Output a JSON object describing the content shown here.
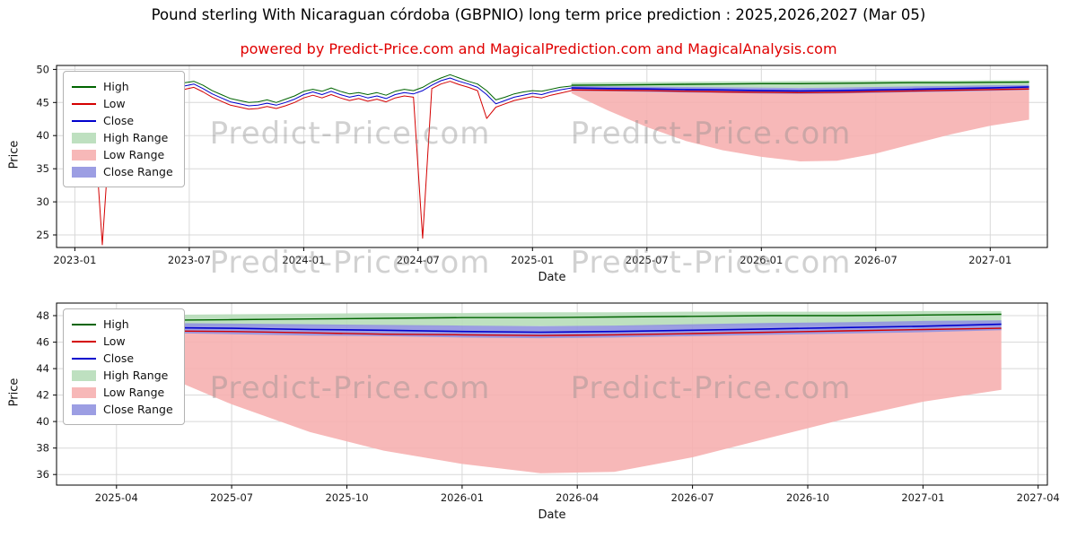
{
  "watermark": {
    "text": "Predict-Price.com"
  },
  "chart_data": [
    {
      "type": "line",
      "title": "Pound sterling With Nicaraguan córdoba (GBPNIO) long term price prediction : 2025,2026,2027 (Mar 05)",
      "subtitle": "powered by Predict-Price.com and MagicalPrediction.com and MagicalAnalysis.com",
      "subtitle_color": "#e00000",
      "xlabel": "Date",
      "ylabel": "Price",
      "xlim": [
        2022.92,
        2027.25
      ],
      "ylim": [
        23.1,
        50.6
      ],
      "grid": true,
      "legend_position": "upper-left",
      "xticks": [
        {
          "v": 2023.0,
          "label": "2023-01"
        },
        {
          "v": 2023.5,
          "label": "2023-07"
        },
        {
          "v": 2024.0,
          "label": "2024-01"
        },
        {
          "v": 2024.5,
          "label": "2024-07"
        },
        {
          "v": 2025.0,
          "label": "2025-01"
        },
        {
          "v": 2025.5,
          "label": "2025-07"
        },
        {
          "v": 2026.0,
          "label": "2026-01"
        },
        {
          "v": 2026.5,
          "label": "2026-07"
        },
        {
          "v": 2027.0,
          "label": "2027-01"
        }
      ],
      "yticks": [
        25,
        30,
        35,
        40,
        45,
        50
      ],
      "series_colors": {
        "high": "#006400",
        "low": "#d40000",
        "close": "#0000cd",
        "high_range": "#b7ddb9",
        "low_range": "#f6b0b0",
        "close_range": "#9193e0"
      },
      "legend": [
        {
          "label": "High",
          "key": "high",
          "type": "line"
        },
        {
          "label": "Low",
          "key": "low",
          "type": "line"
        },
        {
          "label": "Close",
          "key": "close",
          "type": "line"
        },
        {
          "label": "High Range",
          "key": "high_range",
          "type": "patch"
        },
        {
          "label": "Low Range",
          "key": "low_range",
          "type": "patch"
        },
        {
          "label": "Close Range",
          "key": "close_range",
          "type": "patch"
        }
      ],
      "history": {
        "t": [
          2023.0,
          2023.04,
          2023.08,
          2023.12,
          2023.16,
          2023.2,
          2023.24,
          2023.28,
          2023.32,
          2023.36,
          2023.4,
          2023.44,
          2023.48,
          2023.52,
          2023.56,
          2023.6,
          2023.64,
          2023.68,
          2023.72,
          2023.76,
          2023.8,
          2023.84,
          2023.88,
          2023.92,
          2023.96,
          2024.0,
          2024.04,
          2024.08,
          2024.12,
          2024.16,
          2024.2,
          2024.24,
          2024.28,
          2024.32,
          2024.36,
          2024.4,
          2024.44,
          2024.48,
          2024.52,
          2024.56,
          2024.6,
          2024.64,
          2024.68,
          2024.72,
          2024.76,
          2024.8,
          2024.84,
          2024.88,
          2024.92,
          2024.96,
          2025.0,
          2025.04,
          2025.08,
          2025.12,
          2025.17
        ],
        "high": [
          44.9,
          44.8,
          45.2,
          45.0,
          45.4,
          45.7,
          46.1,
          45.6,
          46.2,
          46.6,
          47.2,
          47.5,
          48.0,
          48.2,
          47.6,
          46.8,
          46.2,
          45.6,
          45.3,
          45.0,
          45.1,
          45.4,
          45.0,
          45.5,
          46.0,
          46.7,
          47.0,
          46.7,
          47.2,
          46.7,
          46.3,
          46.5,
          46.2,
          46.5,
          46.1,
          46.7,
          47.0,
          46.8,
          47.3,
          48.1,
          48.7,
          49.2,
          48.7,
          48.2,
          47.8,
          46.8,
          45.4,
          45.8,
          46.3,
          46.6,
          46.8,
          46.7,
          47.0,
          47.3,
          47.5
        ],
        "low": [
          44.1,
          43.9,
          44.3,
          23.5,
          44.4,
          44.8,
          45.1,
          44.6,
          45.2,
          45.7,
          46.2,
          46.6,
          47.0,
          47.3,
          46.6,
          45.8,
          45.2,
          44.6,
          44.3,
          44.0,
          44.1,
          44.4,
          44.1,
          44.5,
          45.0,
          45.7,
          46.1,
          45.7,
          46.2,
          45.7,
          45.3,
          45.6,
          45.2,
          45.5,
          45.1,
          45.7,
          46.0,
          45.8,
          24.5,
          47.1,
          47.8,
          48.2,
          47.7,
          47.3,
          46.8,
          42.6,
          44.3,
          44.8,
          45.3,
          45.6,
          45.9,
          45.7,
          46.1,
          46.4,
          46.8
        ],
        "close": [
          44.6,
          44.3,
          44.8,
          44.5,
          44.9,
          45.3,
          45.6,
          45.1,
          45.7,
          46.2,
          46.7,
          47.1,
          47.5,
          47.8,
          47.1,
          46.3,
          45.7,
          45.1,
          44.8,
          44.5,
          44.6,
          44.9,
          44.6,
          45.0,
          45.5,
          46.2,
          46.6,
          46.2,
          46.7,
          46.2,
          45.8,
          46.1,
          45.7,
          46.0,
          45.6,
          46.2,
          46.5,
          46.3,
          46.8,
          47.6,
          48.3,
          48.7,
          48.2,
          47.8,
          47.3,
          46.2,
          44.8,
          45.3,
          45.8,
          46.1,
          46.4,
          46.2,
          46.6,
          46.9,
          47.2
        ]
      },
      "prediction": {
        "t": [
          2025.17,
          2025.33,
          2025.5,
          2025.67,
          2025.83,
          2026.0,
          2026.17,
          2026.33,
          2026.5,
          2026.67,
          2026.83,
          2027.0,
          2027.17
        ],
        "high": [
          47.6,
          47.65,
          47.7,
          47.75,
          47.8,
          47.85,
          47.85,
          47.9,
          47.95,
          48.0,
          48.0,
          48.05,
          48.1
        ],
        "low": [
          46.9,
          46.85,
          46.8,
          46.7,
          46.6,
          46.55,
          46.5,
          46.55,
          46.65,
          46.75,
          46.85,
          46.95,
          47.05
        ],
        "close": [
          47.2,
          47.1,
          47.05,
          46.95,
          46.9,
          46.8,
          46.75,
          46.8,
          46.9,
          47.0,
          47.1,
          47.2,
          47.35
        ],
        "high_range": {
          "top": [
            48.0,
            48.05,
            48.1,
            48.15,
            48.2,
            48.2,
            48.25,
            48.25,
            48.3,
            48.3,
            48.3,
            48.35,
            48.35
          ],
          "bottom": [
            47.2,
            47.2,
            47.2,
            47.2,
            47.2,
            47.2,
            47.2,
            47.2,
            47.2,
            47.25,
            47.25,
            47.3,
            47.3
          ]
        },
        "low_range": {
          "top": [
            46.8,
            46.75,
            46.7,
            46.6,
            46.55,
            46.5,
            46.45,
            46.5,
            46.6,
            46.7,
            46.8,
            46.9,
            47.0
          ],
          "bottom": [
            46.4,
            43.8,
            41.3,
            39.2,
            37.8,
            36.8,
            36.1,
            36.2,
            37.3,
            38.8,
            40.2,
            41.5,
            42.4
          ]
        },
        "close_range": {
          "top": [
            47.5,
            47.45,
            47.4,
            47.35,
            47.3,
            47.25,
            47.2,
            47.25,
            47.35,
            47.45,
            47.5,
            47.6,
            47.65
          ],
          "bottom": [
            46.75,
            46.7,
            46.6,
            46.5,
            46.45,
            46.35,
            46.3,
            46.35,
            46.45,
            46.55,
            46.65,
            46.75,
            46.9
          ]
        }
      }
    },
    {
      "type": "line",
      "xlabel": "Date",
      "ylabel": "Price",
      "xlim": [
        2025.12,
        2027.27
      ],
      "ylim": [
        35.2,
        48.95
      ],
      "grid": true,
      "legend_position": "upper-left",
      "xticks": [
        {
          "v": 2025.25,
          "label": "2025-04"
        },
        {
          "v": 2025.5,
          "label": "2025-07"
        },
        {
          "v": 2025.75,
          "label": "2025-10"
        },
        {
          "v": 2026.0,
          "label": "2026-01"
        },
        {
          "v": 2026.25,
          "label": "2026-04"
        },
        {
          "v": 2026.5,
          "label": "2026-07"
        },
        {
          "v": 2026.75,
          "label": "2026-10"
        },
        {
          "v": 2027.0,
          "label": "2027-01"
        },
        {
          "v": 2027.25,
          "label": "2027-04"
        }
      ],
      "yticks": [
        36,
        38,
        40,
        42,
        44,
        46,
        48
      ],
      "series_colors": {
        "high": "#006400",
        "low": "#d40000",
        "close": "#0000cd",
        "high_range": "#b7ddb9",
        "low_range": "#f6b0b0",
        "close_range": "#9193e0"
      },
      "legend": [
        {
          "label": "High",
          "key": "high",
          "type": "line"
        },
        {
          "label": "Low",
          "key": "low",
          "type": "line"
        },
        {
          "label": "Close",
          "key": "close",
          "type": "line"
        },
        {
          "label": "High Range",
          "key": "high_range",
          "type": "patch"
        },
        {
          "label": "Low Range",
          "key": "low_range",
          "type": "patch"
        },
        {
          "label": "Close Range",
          "key": "close_range",
          "type": "patch"
        }
      ],
      "prediction": {
        "t": [
          2025.17,
          2025.33,
          2025.5,
          2025.67,
          2025.83,
          2026.0,
          2026.17,
          2026.33,
          2026.5,
          2026.67,
          2026.83,
          2027.0,
          2027.17
        ],
        "high": [
          47.6,
          47.65,
          47.7,
          47.75,
          47.8,
          47.85,
          47.85,
          47.9,
          47.95,
          48.0,
          48.0,
          48.05,
          48.1
        ],
        "low": [
          46.9,
          46.85,
          46.8,
          46.7,
          46.6,
          46.55,
          46.5,
          46.55,
          46.65,
          46.75,
          46.85,
          46.95,
          47.05
        ],
        "close": [
          47.2,
          47.1,
          47.05,
          46.95,
          46.9,
          46.8,
          46.75,
          46.8,
          46.9,
          47.0,
          47.1,
          47.2,
          47.35
        ],
        "high_range": {
          "top": [
            48.0,
            48.05,
            48.1,
            48.15,
            48.2,
            48.2,
            48.25,
            48.25,
            48.3,
            48.3,
            48.3,
            48.35,
            48.35
          ],
          "bottom": [
            47.2,
            47.2,
            47.2,
            47.2,
            47.2,
            47.2,
            47.2,
            47.2,
            47.2,
            47.25,
            47.25,
            47.3,
            47.3
          ]
        },
        "low_range": {
          "top": [
            46.8,
            46.75,
            46.7,
            46.6,
            46.55,
            46.5,
            46.45,
            46.5,
            46.6,
            46.7,
            46.8,
            46.9,
            47.0
          ],
          "bottom": [
            46.4,
            43.8,
            41.3,
            39.2,
            37.8,
            36.8,
            36.1,
            36.2,
            37.3,
            38.8,
            40.2,
            41.5,
            42.4
          ]
        },
        "close_range": {
          "top": [
            47.5,
            47.45,
            47.4,
            47.35,
            47.3,
            47.25,
            47.2,
            47.25,
            47.35,
            47.45,
            47.5,
            47.6,
            47.65
          ],
          "bottom": [
            46.75,
            46.7,
            46.6,
            46.5,
            46.45,
            46.35,
            46.3,
            46.35,
            46.45,
            46.55,
            46.65,
            46.75,
            46.9
          ]
        }
      }
    }
  ]
}
